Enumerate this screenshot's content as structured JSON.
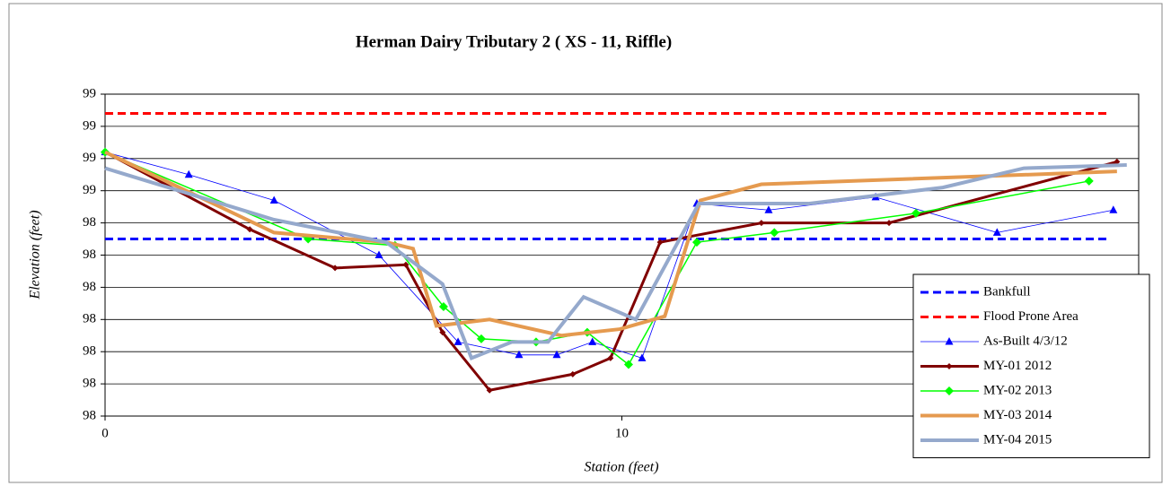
{
  "chart_data": {
    "type": "line",
    "title": "Herman Dairy Tributary 2  ( XS - 11, Riffle)",
    "x_label": "Station (feet)",
    "y_label": "Elevation (feet)",
    "xlim": [
      0,
      20
    ],
    "xticks": [
      0,
      10,
      20
    ],
    "ylim": [
      97.8,
      98.8
    ],
    "yticks": [
      {
        "value": 97.8,
        "label": "98"
      },
      {
        "value": 97.9,
        "label": "98"
      },
      {
        "value": 98.0,
        "label": "98"
      },
      {
        "value": 98.1,
        "label": "98"
      },
      {
        "value": 98.2,
        "label": "98"
      },
      {
        "value": 98.3,
        "label": "98"
      },
      {
        "value": 98.4,
        "label": "98"
      },
      {
        "value": 98.5,
        "label": "99"
      },
      {
        "value": 98.6,
        "label": "99"
      },
      {
        "value": 98.7,
        "label": "99"
      },
      {
        "value": 98.8,
        "label": "99"
      }
    ],
    "grid": true,
    "legend": "lower right",
    "series": [
      {
        "name": "Bankfull",
        "color": "#0000ff",
        "dashed": true,
        "marker": "none",
        "x": [
          0,
          19.4
        ],
        "values": [
          98.35,
          98.35
        ]
      },
      {
        "name": "Flood Prone Area",
        "color": "#ff0000",
        "dashed": true,
        "marker": "none",
        "x": [
          0,
          19.4
        ],
        "values": [
          98.74,
          98.74
        ]
      },
      {
        "name": "As-Built 4/3/12",
        "color": "#0000ff",
        "marker": "triangle",
        "x": [
          0,
          1.62,
          3.27,
          5.3,
          6.83,
          8.01,
          8.74,
          9.43,
          10.39,
          11.45,
          12.84,
          14.91,
          17.26,
          19.51
        ],
        "values": [
          98.62,
          98.55,
          98.47,
          98.3,
          98.03,
          97.99,
          97.99,
          98.03,
          97.98,
          98.46,
          98.44,
          98.48,
          98.37,
          98.44
        ]
      },
      {
        "name": "MY-01 2012",
        "color": "#800000",
        "marker": "diamond",
        "x": [
          0,
          2.8,
          4.45,
          5.82,
          6.53,
          7.44,
          9.05,
          9.78,
          10.74,
          12.7,
          15.17,
          19.58
        ],
        "values": [
          98.62,
          98.38,
          98.26,
          98.27,
          98.06,
          97.88,
          97.93,
          97.98,
          98.34,
          98.4,
          98.4,
          98.59
        ]
      },
      {
        "name": "MY-02 2013",
        "color": "#00ff00",
        "marker": "diamond",
        "x": [
          0,
          3.93,
          5.61,
          6.55,
          7.28,
          8.34,
          9.33,
          10.13,
          11.45,
          12.95,
          15.69,
          19.04
        ],
        "values": [
          98.62,
          98.35,
          98.33,
          98.14,
          98.04,
          98.03,
          98.06,
          97.96,
          98.34,
          98.37,
          98.43,
          98.53
        ]
      },
      {
        "name": "MY-03 2014",
        "color": "#e59a4f",
        "marker": "none",
        "x": [
          0,
          3.27,
          5.44,
          5.96,
          6.41,
          7.44,
          8.83,
          9.96,
          10.83,
          11.52,
          12.7,
          19.58
        ],
        "values": [
          98.62,
          98.37,
          98.34,
          98.32,
          98.08,
          98.1,
          98.05,
          98.07,
          98.11,
          98.47,
          98.52,
          98.56
        ]
      },
      {
        "name": "MY-04 2015",
        "color": "#95a9cc",
        "marker": "none",
        "x": [
          0,
          3.27,
          5.44,
          6.53,
          7.09,
          7.87,
          8.57,
          9.26,
          10.27,
          11.49,
          13.61,
          16.21,
          17.78,
          19.77
        ],
        "values": [
          98.57,
          98.41,
          98.34,
          98.21,
          97.98,
          98.03,
          98.03,
          98.17,
          98.1,
          98.46,
          98.46,
          98.51,
          98.57,
          98.58
        ]
      }
    ]
  }
}
